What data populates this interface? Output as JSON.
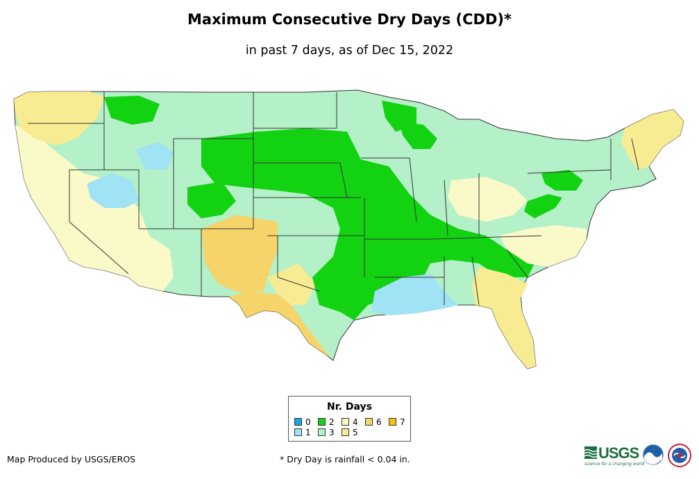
{
  "title": "Maximum Consecutive Dry Days (CDD)*",
  "subtitle": "in past 7 days, as of Dec 15, 2022",
  "legend": {
    "title": "Nr. Days",
    "items": [
      {
        "label": "0",
        "color": "#1aa3e8"
      },
      {
        "label": "1",
        "color": "#9fe3f5"
      },
      {
        "label": "2",
        "color": "#12d212"
      },
      {
        "label": "3",
        "color": "#b4f0c8"
      },
      {
        "label": "4",
        "color": "#fafac8"
      },
      {
        "label": "5",
        "color": "#f8ec92"
      },
      {
        "label": "6",
        "color": "#f6d46a"
      },
      {
        "label": "7",
        "color": "#f5c211"
      }
    ]
  },
  "credit": "Map Produced by USGS/EROS",
  "footnote": "* Dry Day is rainfall < 0.04 in.",
  "logos": {
    "usgs_text": "USGS",
    "usgs_tagline": "science for a changing world"
  }
}
